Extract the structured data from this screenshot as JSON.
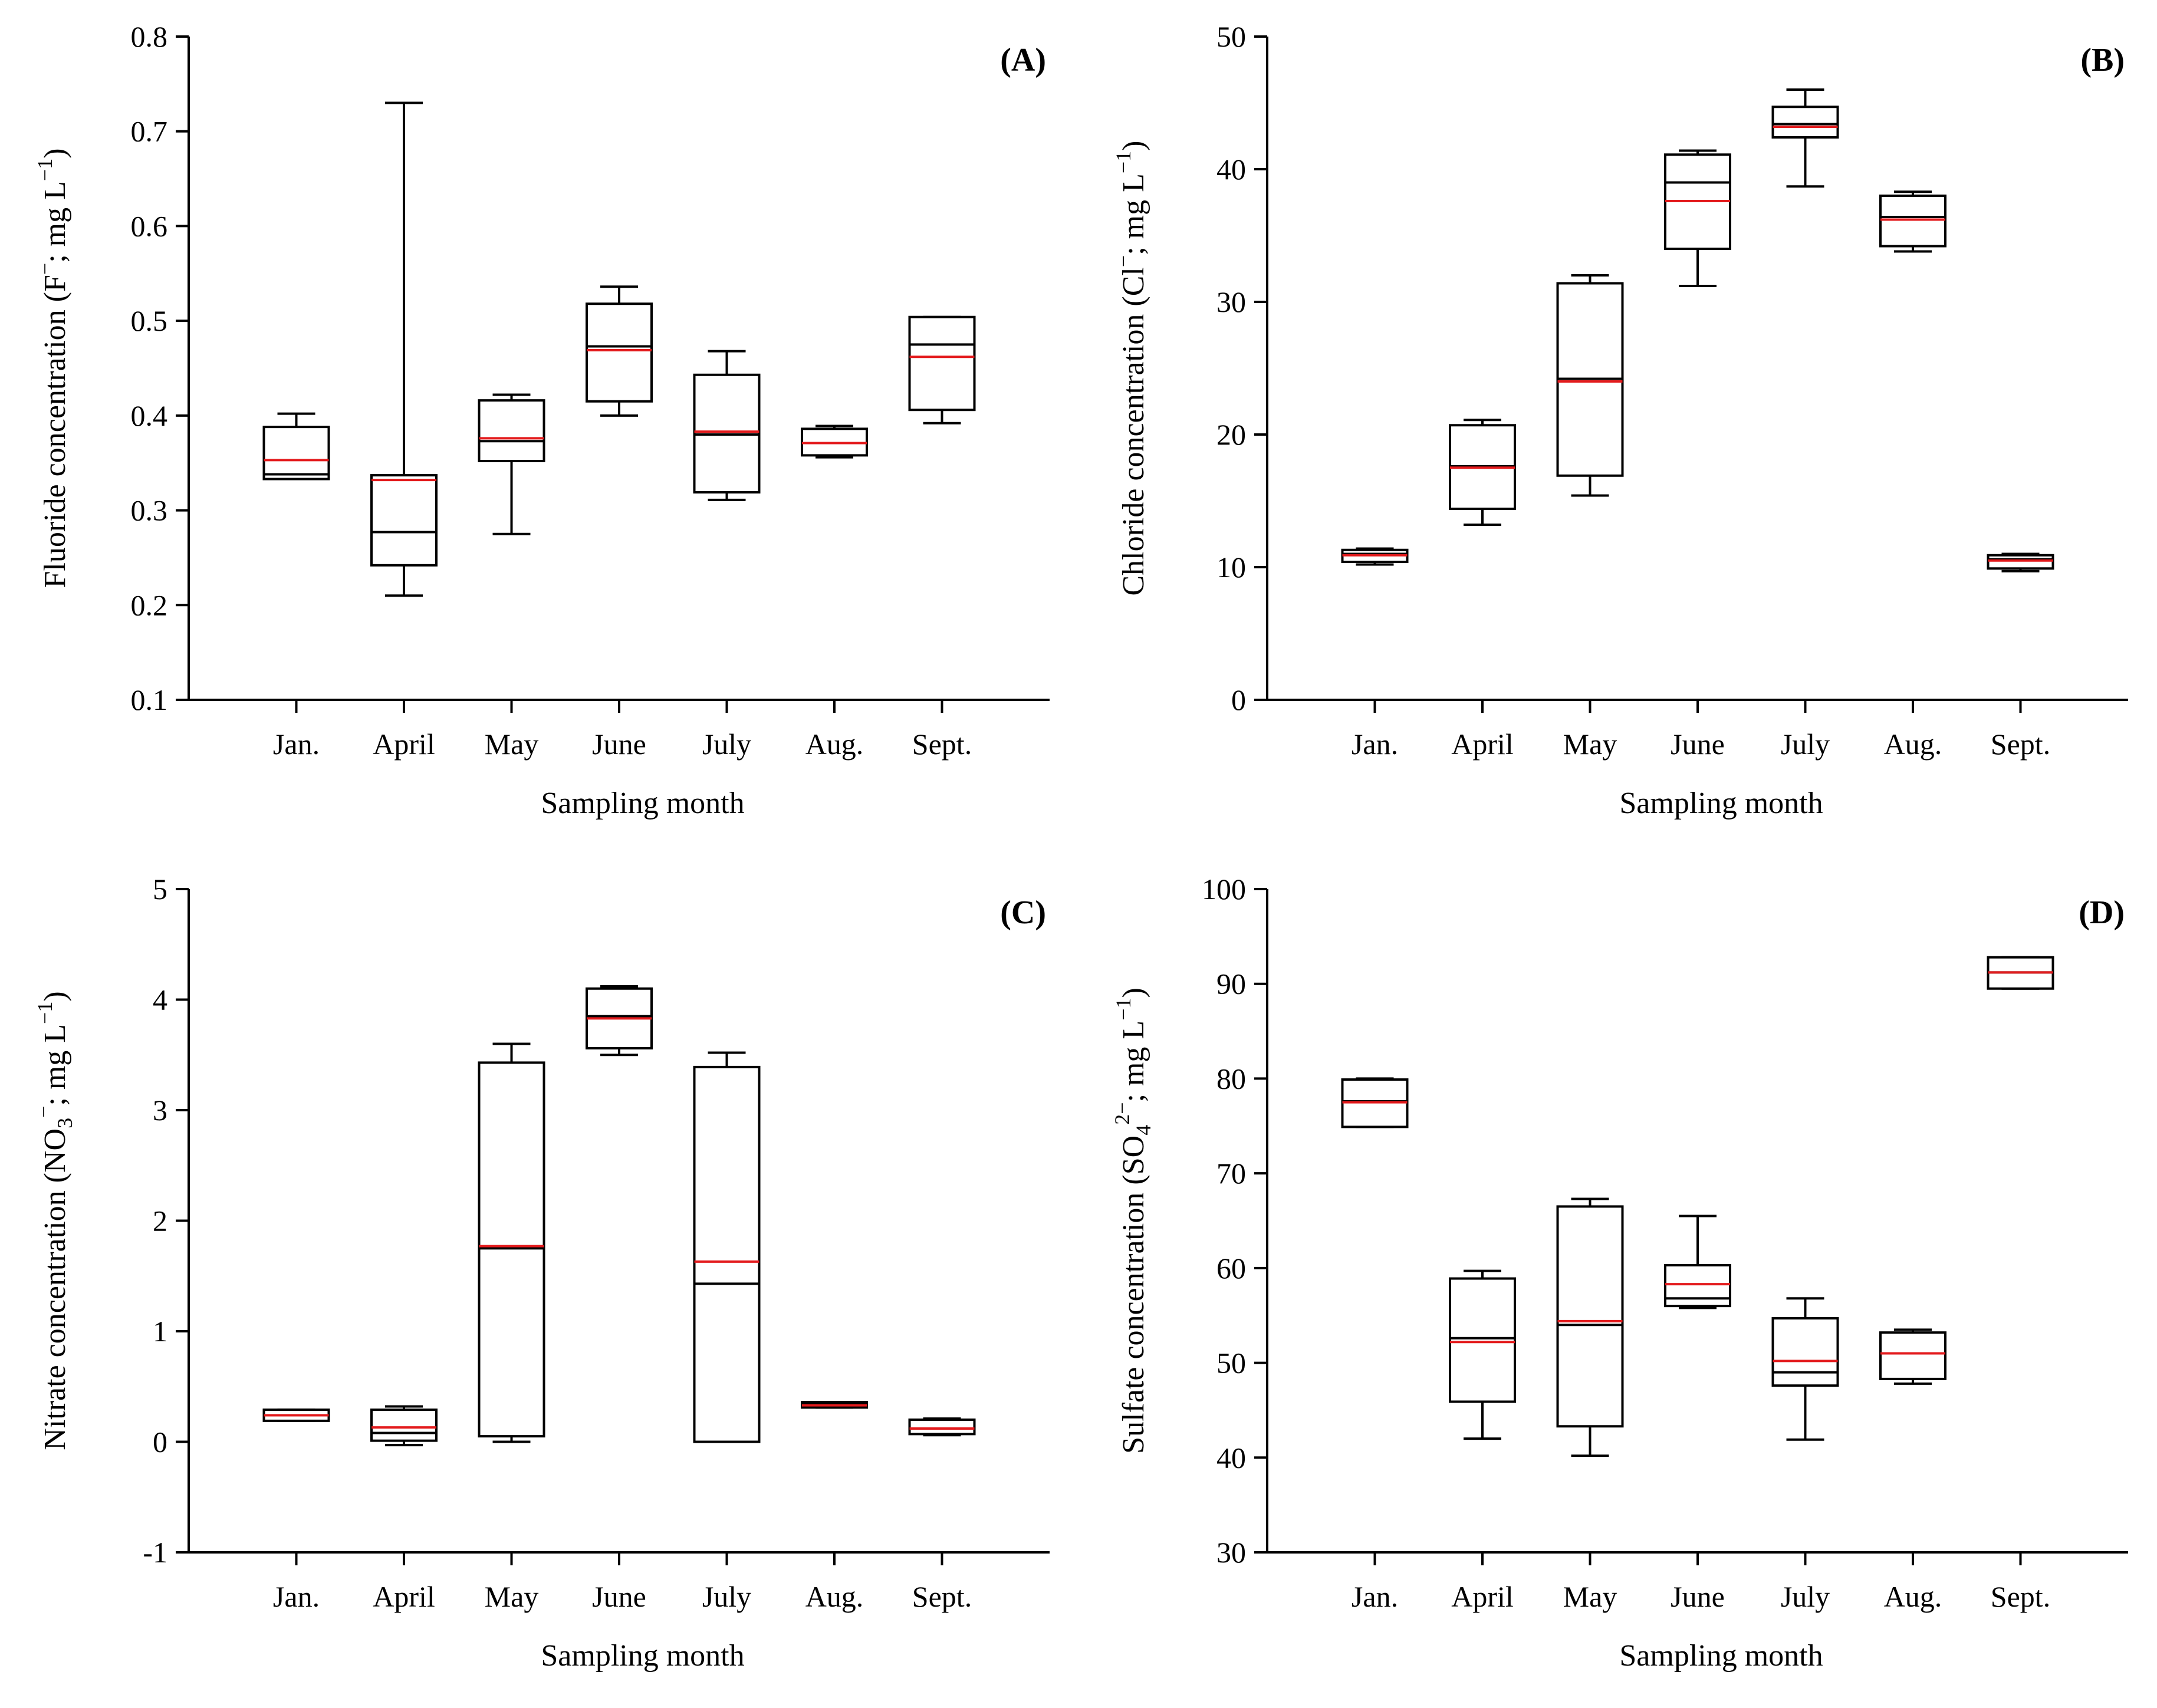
{
  "chart_data": [
    {
      "type": "box",
      "panel_label": "(A)",
      "xlabel": "Sampling month",
      "ylabel": {
        "main": "Fluoride concentration (F",
        "sup": "−",
        "rest": "; mg L",
        "unit_sup": "−1",
        "close": ")"
      },
      "ylim": [
        0.1,
        0.8
      ],
      "yticks": [
        "0.1",
        "0.2",
        "0.3",
        "0.4",
        "0.5",
        "0.6",
        "0.7",
        "0.8"
      ],
      "ytick_values": [
        0.1,
        0.2,
        0.3,
        0.4,
        0.5,
        0.6,
        0.7,
        0.8
      ],
      "categories": [
        "Jan.",
        "April",
        "May",
        "June",
        "July",
        "Aug.",
        "Sept."
      ],
      "boxes": [
        {
          "min": 0.333,
          "q1": 0.333,
          "median": 0.338,
          "mean": 0.353,
          "q3": 0.388,
          "max": 0.402
        },
        {
          "min": 0.21,
          "q1": 0.242,
          "median": 0.277,
          "mean": 0.332,
          "q3": 0.337,
          "max": 0.73
        },
        {
          "min": 0.275,
          "q1": 0.352,
          "median": 0.373,
          "mean": 0.376,
          "q3": 0.416,
          "max": 0.422
        },
        {
          "min": 0.4,
          "q1": 0.415,
          "median": 0.473,
          "mean": 0.469,
          "q3": 0.518,
          "max": 0.536
        },
        {
          "min": 0.311,
          "q1": 0.319,
          "median": 0.38,
          "mean": 0.383,
          "q3": 0.443,
          "max": 0.468
        },
        {
          "min": 0.356,
          "q1": 0.358,
          "median": 0.371,
          "mean": 0.371,
          "q3": 0.386,
          "max": 0.389
        },
        {
          "min": 0.392,
          "q1": 0.406,
          "median": 0.475,
          "mean": 0.462,
          "q3": 0.504,
          "max": 0.504
        }
      ],
      "colors": {
        "box": "#000000",
        "mean": "#e31a1c"
      }
    },
    {
      "type": "box",
      "panel_label": "(B)",
      "xlabel": "Sampling month",
      "ylabel": {
        "main": "Chloride concentration (Cl",
        "sup": "−",
        "rest": "; mg L",
        "unit_sup": "−1",
        "close": ")"
      },
      "ylim": [
        0,
        50
      ],
      "yticks": [
        "0",
        "10",
        "20",
        "30",
        "40",
        "50"
      ],
      "ytick_values": [
        0,
        10,
        20,
        30,
        40,
        50
      ],
      "categories": [
        "Jan.",
        "April",
        "May",
        "June",
        "July",
        "Aug.",
        "Sept."
      ],
      "boxes": [
        {
          "min": 10.2,
          "q1": 10.4,
          "median": 11.0,
          "mean": 10.9,
          "q3": 11.3,
          "max": 11.4
        },
        {
          "min": 13.2,
          "q1": 14.4,
          "median": 17.6,
          "mean": 17.5,
          "q3": 20.7,
          "max": 21.1
        },
        {
          "min": 15.4,
          "q1": 16.9,
          "median": 24.2,
          "mean": 24.0,
          "q3": 31.4,
          "max": 32.0
        },
        {
          "min": 31.2,
          "q1": 34.0,
          "median": 39.0,
          "mean": 37.6,
          "q3": 41.1,
          "max": 41.4
        },
        {
          "min": 38.7,
          "q1": 42.4,
          "median": 43.4,
          "mean": 43.2,
          "q3": 44.7,
          "max": 46.0
        },
        {
          "min": 33.8,
          "q1": 34.2,
          "median": 36.4,
          "mean": 36.2,
          "q3": 38.0,
          "max": 38.3
        },
        {
          "min": 9.7,
          "q1": 9.9,
          "median": 10.6,
          "mean": 10.5,
          "q3": 10.9,
          "max": 11.0
        }
      ],
      "colors": {
        "box": "#000000",
        "mean": "#e31a1c"
      }
    },
    {
      "type": "box",
      "panel_label": "(C)",
      "xlabel": "Sampling month",
      "ylabel": {
        "main": "Nitrate concentration (NO",
        "sub": "3",
        "sup": "−",
        "rest": "; mg L",
        "unit_sup": "−1",
        "close": ")"
      },
      "ylim": [
        -1,
        5
      ],
      "yticks": [
        "-1",
        "0",
        "1",
        "2",
        "3",
        "4",
        "5"
      ],
      "ytick_values": [
        -1,
        0,
        1,
        2,
        3,
        4,
        5
      ],
      "categories": [
        "Jan.",
        "April",
        "May",
        "June",
        "July",
        "Aug.",
        "Sept."
      ],
      "boxes": [
        {
          "min": 0.19,
          "q1": 0.19,
          "median": 0.24,
          "mean": 0.24,
          "q3": 0.29,
          "max": 0.29
        },
        {
          "min": -0.03,
          "q1": 0.01,
          "median": 0.08,
          "mean": 0.13,
          "q3": 0.29,
          "max": 0.32
        },
        {
          "min": 0.0,
          "q1": 0.05,
          "median": 1.75,
          "mean": 1.77,
          "q3": 3.43,
          "max": 3.6
        },
        {
          "min": 3.5,
          "q1": 3.56,
          "median": 3.85,
          "mean": 3.83,
          "q3": 4.1,
          "max": 4.12
        },
        {
          "min": 0.0,
          "q1": 0.0,
          "median": 1.43,
          "mean": 1.63,
          "q3": 3.39,
          "max": 3.52
        },
        {
          "min": 0.31,
          "q1": 0.31,
          "median": 0.34,
          "mean": 0.33,
          "q3": 0.36,
          "max": 0.36
        },
        {
          "min": 0.06,
          "q1": 0.07,
          "median": 0.12,
          "mean": 0.12,
          "q3": 0.2,
          "max": 0.21
        }
      ],
      "colors": {
        "box": "#000000",
        "mean": "#e31a1c"
      }
    },
    {
      "type": "box",
      "panel_label": "(D)",
      "xlabel": "Sampling month",
      "ylabel": {
        "main": "Sulfate concentration (SO",
        "sub": "4",
        "sup": "2−",
        "rest": "; mg L",
        "unit_sup": "−1",
        "close": ")"
      },
      "ylim": [
        30,
        100
      ],
      "yticks": [
        "30",
        "40",
        "50",
        "60",
        "70",
        "80",
        "90",
        "100"
      ],
      "ytick_values": [
        30,
        40,
        50,
        60,
        70,
        80,
        90,
        100
      ],
      "categories": [
        "Jan.",
        "April",
        "May",
        "June",
        "July",
        "Aug.",
        "Sept."
      ],
      "boxes": [
        {
          "min": 74.9,
          "q1": 74.9,
          "median": 77.6,
          "mean": 77.5,
          "q3": 79.9,
          "max": 80.0
        },
        {
          "min": 42.0,
          "q1": 45.9,
          "median": 52.6,
          "mean": 52.2,
          "q3": 58.9,
          "max": 59.7
        },
        {
          "min": 40.2,
          "q1": 43.3,
          "median": 54.0,
          "mean": 54.4,
          "q3": 66.5,
          "max": 67.3
        },
        {
          "min": 55.8,
          "q1": 56.0,
          "median": 56.8,
          "mean": 58.3,
          "q3": 60.3,
          "max": 65.5
        },
        {
          "min": 41.9,
          "q1": 47.6,
          "median": 49.0,
          "mean": 50.2,
          "q3": 54.7,
          "max": 56.8
        },
        {
          "min": 47.8,
          "q1": 48.3,
          "median": 51.0,
          "mean": 51.0,
          "q3": 53.2,
          "max": 53.5
        },
        {
          "min": 89.5,
          "q1": 89.5,
          "median": 91.2,
          "mean": 91.2,
          "q3": 92.8,
          "max": 92.8
        }
      ],
      "colors": {
        "box": "#000000",
        "mean": "#e31a1c"
      }
    }
  ]
}
